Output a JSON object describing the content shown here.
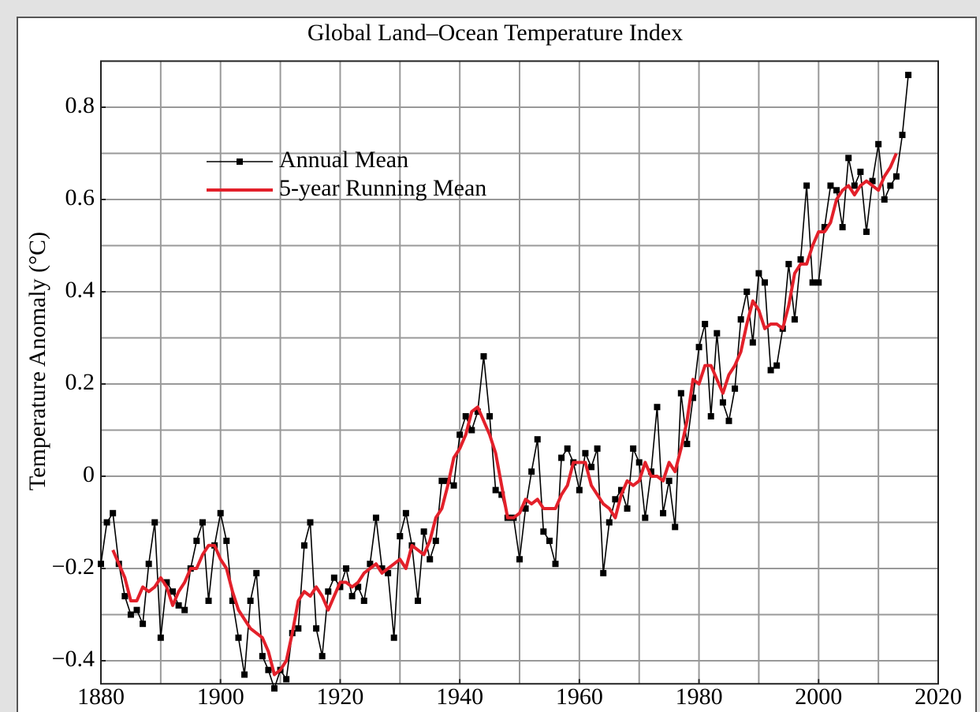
{
  "chart_data": {
    "type": "line",
    "title": "Global Land–Ocean Temperature Index",
    "y_label": "Temperature Anomaly (°C)",
    "x": [
      1880,
      1881,
      1882,
      1883,
      1884,
      1885,
      1886,
      1887,
      1888,
      1889,
      1890,
      1891,
      1892,
      1893,
      1894,
      1895,
      1896,
      1897,
      1898,
      1899,
      1900,
      1901,
      1902,
      1903,
      1904,
      1905,
      1906,
      1907,
      1908,
      1909,
      1910,
      1911,
      1912,
      1913,
      1914,
      1915,
      1916,
      1917,
      1918,
      1919,
      1920,
      1921,
      1922,
      1923,
      1924,
      1925,
      1926,
      1927,
      1928,
      1929,
      1930,
      1931,
      1932,
      1933,
      1934,
      1935,
      1936,
      1937,
      1938,
      1939,
      1940,
      1941,
      1942,
      1943,
      1944,
      1945,
      1946,
      1947,
      1948,
      1949,
      1950,
      1951,
      1952,
      1953,
      1954,
      1955,
      1956,
      1957,
      1958,
      1959,
      1960,
      1961,
      1962,
      1963,
      1964,
      1965,
      1966,
      1967,
      1968,
      1969,
      1970,
      1971,
      1972,
      1973,
      1974,
      1975,
      1976,
      1977,
      1978,
      1979,
      1980,
      1981,
      1982,
      1983,
      1984,
      1985,
      1986,
      1987,
      1988,
      1989,
      1990,
      1991,
      1992,
      1993,
      1994,
      1995,
      1996,
      1997,
      1998,
      1999,
      2000,
      2001,
      2002,
      2003,
      2004,
      2005,
      2006,
      2007,
      2008,
      2009,
      2010,
      2011,
      2012,
      2013,
      2014,
      2015
    ],
    "series": [
      {
        "name": "Annual Mean",
        "color": "#000000",
        "marker": "square",
        "values": [
          -0.19,
          -0.1,
          -0.08,
          -0.19,
          -0.26,
          -0.3,
          -0.29,
          -0.32,
          -0.19,
          -0.1,
          -0.35,
          -0.23,
          -0.25,
          -0.28,
          -0.29,
          -0.2,
          -0.14,
          -0.1,
          -0.27,
          -0.15,
          -0.08,
          -0.14,
          -0.27,
          -0.35,
          -0.43,
          -0.27,
          -0.21,
          -0.39,
          -0.42,
          -0.46,
          -0.42,
          -0.44,
          -0.34,
          -0.33,
          -0.15,
          -0.1,
          -0.33,
          -0.39,
          -0.25,
          -0.22,
          -0.24,
          -0.2,
          -0.26,
          -0.24,
          -0.27,
          -0.19,
          -0.09,
          -0.2,
          -0.21,
          -0.35,
          -0.13,
          -0.08,
          -0.15,
          -0.27,
          -0.12,
          -0.18,
          -0.14,
          -0.01,
          -0.01,
          -0.02,
          0.09,
          0.13,
          0.1,
          0.14,
          0.26,
          0.13,
          -0.03,
          -0.04,
          -0.09,
          -0.09,
          -0.18,
          -0.07,
          0.01,
          0.08,
          -0.12,
          -0.14,
          -0.19,
          0.04,
          0.06,
          0.03,
          -0.03,
          0.05,
          0.02,
          0.06,
          -0.21,
          -0.1,
          -0.05,
          -0.03,
          -0.07,
          0.06,
          0.03,
          -0.09,
          0.01,
          0.15,
          -0.08,
          -0.01,
          -0.11,
          0.18,
          0.07,
          0.17,
          0.28,
          0.33,
          0.13,
          0.31,
          0.16,
          0.12,
          0.19,
          0.34,
          0.4,
          0.29,
          0.44,
          0.42,
          0.23,
          0.24,
          0.32,
          0.46,
          0.34,
          0.47,
          0.63,
          0.42,
          0.42,
          0.54,
          0.63,
          0.62,
          0.54,
          0.69,
          0.63,
          0.66,
          0.53,
          0.64,
          0.72,
          0.6,
          0.63,
          0.65,
          0.74,
          0.87
        ]
      },
      {
        "name": "5-year Running Mean",
        "color": "#e3202a",
        "values": [
          null,
          null,
          -0.16,
          -0.19,
          -0.22,
          -0.27,
          -0.27,
          -0.24,
          -0.25,
          -0.24,
          -0.22,
          -0.24,
          -0.28,
          -0.25,
          -0.23,
          -0.2,
          -0.2,
          -0.17,
          -0.15,
          -0.15,
          -0.18,
          -0.2,
          -0.25,
          -0.29,
          -0.31,
          -0.33,
          -0.34,
          -0.35,
          -0.38,
          -0.43,
          -0.42,
          -0.4,
          -0.34,
          -0.27,
          -0.25,
          -0.26,
          -0.24,
          -0.26,
          -0.29,
          -0.26,
          -0.23,
          -0.23,
          -0.24,
          -0.23,
          -0.21,
          -0.2,
          -0.19,
          -0.21,
          -0.2,
          -0.19,
          -0.18,
          -0.2,
          -0.15,
          -0.16,
          -0.17,
          -0.14,
          -0.09,
          -0.07,
          -0.02,
          0.04,
          0.06,
          0.09,
          0.14,
          0.15,
          0.12,
          0.09,
          0.05,
          -0.02,
          -0.09,
          -0.09,
          -0.08,
          -0.05,
          -0.06,
          -0.05,
          -0.07,
          -0.07,
          -0.07,
          -0.04,
          -0.02,
          0.03,
          0.03,
          0.03,
          -0.02,
          -0.04,
          -0.06,
          -0.07,
          -0.09,
          -0.04,
          -0.01,
          -0.02,
          -0.01,
          0.03,
          0.0,
          0.0,
          -0.01,
          0.03,
          0.01,
          0.06,
          0.12,
          0.21,
          0.2,
          0.24,
          0.24,
          0.21,
          0.18,
          0.22,
          0.24,
          0.27,
          0.33,
          0.38,
          0.36,
          0.32,
          0.33,
          0.33,
          0.32,
          0.37,
          0.44,
          0.46,
          0.46,
          0.5,
          0.53,
          0.53,
          0.55,
          0.6,
          0.62,
          0.63,
          0.61,
          0.63,
          0.64,
          0.63,
          0.62,
          0.65,
          0.67,
          0.7,
          null,
          null
        ]
      }
    ],
    "xlim": [
      1880,
      2020
    ],
    "ylim": [
      -0.45,
      0.9
    ],
    "xticks": [
      1880,
      1900,
      1920,
      1940,
      1960,
      1980,
      2000,
      2020
    ],
    "yticks": [
      {
        "value": -0.4,
        "label": "−0.4"
      },
      {
        "value": -0.2,
        "label": "−0.2"
      },
      0,
      0.2,
      0.4,
      0.6,
      0.8
    ],
    "x_grid": [
      1880,
      1890,
      1900,
      1910,
      1920,
      1930,
      1940,
      1950,
      1960,
      1970,
      1980,
      1990,
      2000,
      2010,
      2020
    ],
    "y_grid": [
      -0.4,
      -0.3,
      -0.2,
      -0.1,
      0,
      0.1,
      0.2,
      0.3,
      0.4,
      0.5,
      0.6,
      0.7,
      0.8
    ],
    "grid": true,
    "legend": "upper left"
  }
}
